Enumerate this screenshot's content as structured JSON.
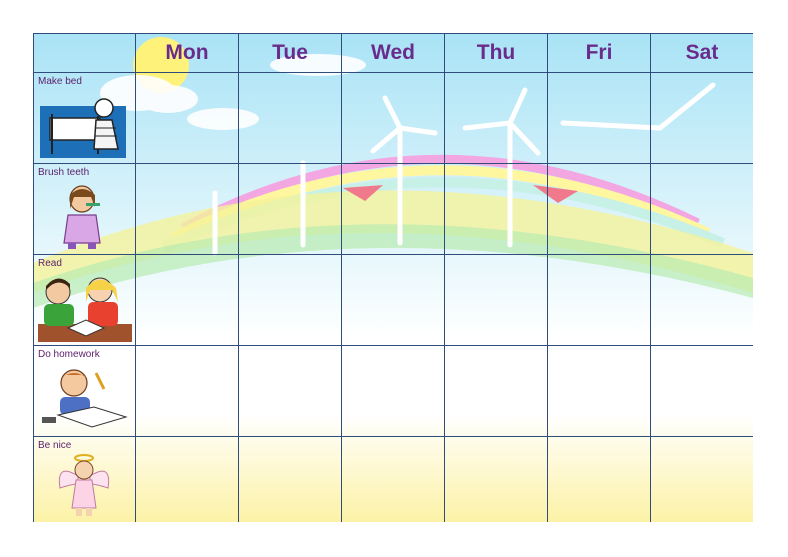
{
  "chart_title": "",
  "days": [
    "Mon",
    "Tue",
    "Wed",
    "Thu",
    "Fri",
    "Sat"
  ],
  "tasks": [
    {
      "label": "Make bed",
      "icon": "make-bed-illustration"
    },
    {
      "label": "Brush teeth",
      "icon": "brush-teeth-illustration"
    },
    {
      "label": "Read",
      "icon": "reading-children-illustration"
    },
    {
      "label": "Do homework",
      "icon": "homework-boy-illustration"
    },
    {
      "label": "Be nice",
      "icon": "angel-child-illustration"
    }
  ],
  "colors": {
    "header_text": "#6a2c8c",
    "grid_lines": "#2f4c7a",
    "sky": "#bfe9f7",
    "sun": "#fff27a",
    "bottom_fade": "#fdf5b0"
  }
}
